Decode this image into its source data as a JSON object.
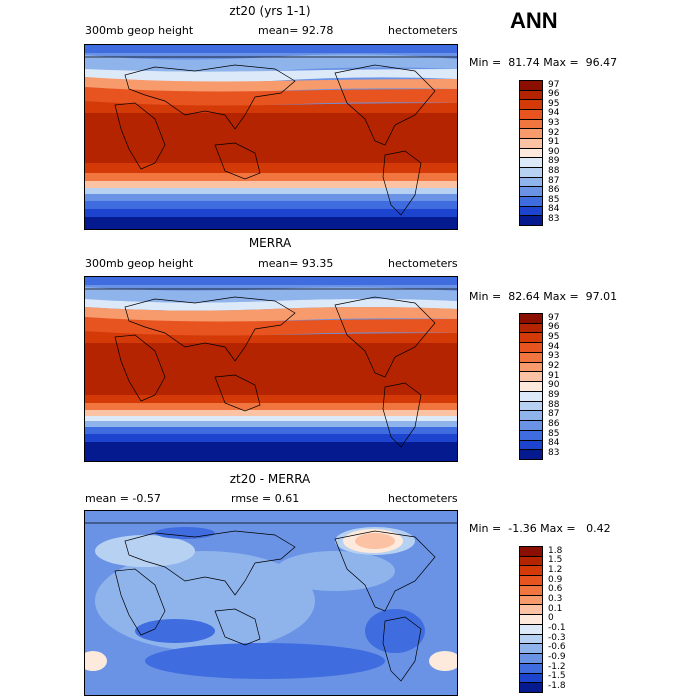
{
  "season": "ANN",
  "panels": [
    {
      "title": "zt20 (yrs 1-1)",
      "left_label": "300mb geop height",
      "center_label": "mean=  92.78",
      "units": "hectometers",
      "minmax": "Min =  81.74 Max =  96.47",
      "levels": [
        "97",
        "96",
        "95",
        "94",
        "93",
        "92",
        "91",
        "90",
        "89",
        "88",
        "87",
        "86",
        "85",
        "84",
        "83"
      ]
    },
    {
      "title": "MERRA",
      "left_label": "300mb geop height",
      "center_label": "mean=  93.35",
      "units": "hectometers",
      "minmax": "Min =  82.64 Max =  97.01",
      "levels": [
        "97",
        "96",
        "95",
        "94",
        "93",
        "92",
        "91",
        "90",
        "89",
        "88",
        "87",
        "86",
        "85",
        "84",
        "83"
      ]
    },
    {
      "title": "zt20 - MERRA",
      "left_label": "mean =  -0.57",
      "center_label": "rmse =   0.61",
      "units": "hectometers",
      "minmax": "Min =  -1.36 Max =   0.42",
      "levels": [
        "1.8",
        "1.5",
        "1.2",
        "0.9",
        "0.6",
        "0.3",
        "0.1",
        "0",
        "-0.1",
        "-0.3",
        "-0.6",
        "-0.9",
        "-1.2",
        "-1.5",
        "-1.8"
      ]
    }
  ],
  "colors": {
    "abs_scale": [
      "#8a0f00",
      "#b52400",
      "#d33a08",
      "#e8541f",
      "#f0753e",
      "#f79a6c",
      "#fbc2a3",
      "#fdeadc",
      "#dce9f8",
      "#b7d1f2",
      "#8fb4ec",
      "#6a93e6",
      "#3f6de0",
      "#1d44cf",
      "#061a8f"
    ],
    "diff_scale": [
      "#8a0f00",
      "#b52400",
      "#d33a08",
      "#e8541f",
      "#f0753e",
      "#f79a6c",
      "#fbc2a3",
      "#fdeadc",
      "#dce9f8",
      "#b7d1f2",
      "#8fb4ec",
      "#6a93e6",
      "#3f6de0",
      "#1d44cf",
      "#061a8f"
    ]
  }
}
